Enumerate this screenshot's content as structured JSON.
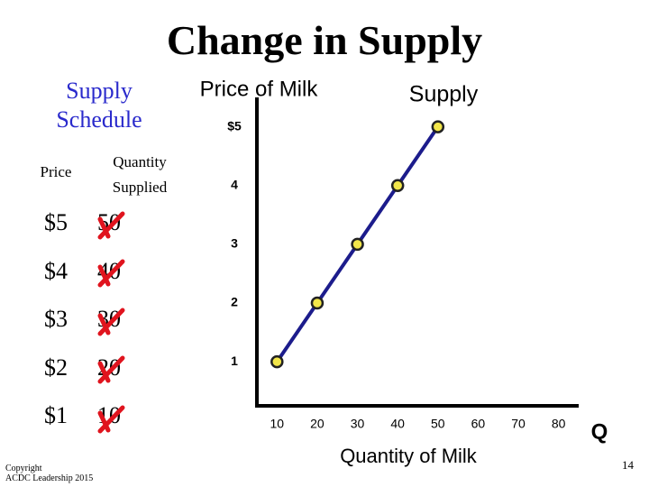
{
  "title": "Change in Supply",
  "supply_schedule": {
    "title": "Supply Schedule",
    "columns": [
      "Price",
      "Quantity Supplied"
    ],
    "rows": [
      [
        "$5",
        "50"
      ],
      [
        "$4",
        "40"
      ],
      [
        "$3",
        "30"
      ],
      [
        "$2",
        "20"
      ],
      [
        "$1",
        "10"
      ]
    ]
  },
  "footer": {
    "copyright": [
      "Copyright",
      "ACDC Leadership 2015"
    ],
    "page": "14"
  },
  "chart_data": {
    "type": "line",
    "y_label": "Price of Milk",
    "x_label": "Quantity of Milk",
    "x_end_label": "Q",
    "x": [
      10,
      20,
      30,
      40,
      50
    ],
    "series": [
      {
        "name": "Supply",
        "color": "#1c1c8c",
        "values": [
          1,
          2,
          3,
          4,
          5
        ]
      }
    ],
    "marker_color": "#f2e64a",
    "xlim": [
      5,
      85
    ],
    "xticks": [
      10,
      20,
      30,
      40,
      50,
      60,
      70,
      80
    ],
    "ylim": [
      0.25,
      5.5
    ],
    "yticks": [
      1,
      2,
      3,
      4,
      {
        "value": 5,
        "label": "$5"
      }
    ]
  }
}
